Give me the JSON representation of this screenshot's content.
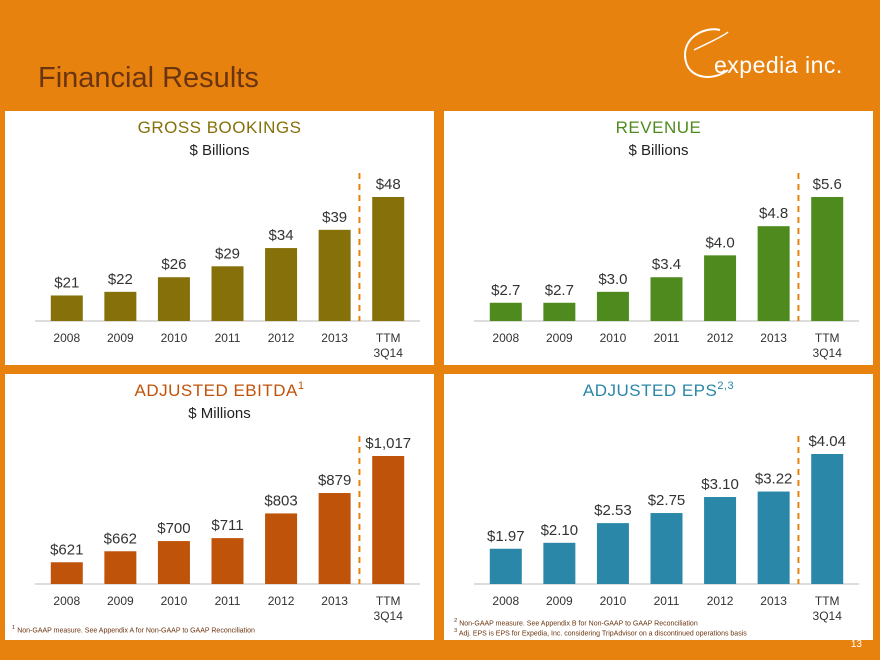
{
  "page": {
    "title": "Financial Results",
    "logo_text": "expedia inc.",
    "page_number": "13"
  },
  "footnotes": {
    "ebitda": "Non-GAAP measure. See Appendix A for Non-GAAP to GAAP Reconciliation",
    "ebitda_mark": "1",
    "eps_1": "Non-GAAP measure. See Appendix B for Non-GAAP to GAAP Reconciliation",
    "eps_1_mark": "2",
    "eps_2": "Adj. EPS is EPS for Expedia, Inc. considering TripAdvisor on a discontinued operations basis",
    "eps_2_mark": "3"
  },
  "chart_data": [
    {
      "id": "gross-bookings",
      "type": "bar",
      "title": "GROSS BOOKINGS",
      "title_sup": "",
      "subtitle": "$ Billions",
      "categories": [
        "2008",
        "2009",
        "2010",
        "2011",
        "2012",
        "2013",
        "TTM"
      ],
      "category_sublabels": [
        "",
        "",
        "",
        "",
        "",
        "",
        "3Q14"
      ],
      "values": [
        21,
        22,
        26,
        29,
        34,
        39,
        48
      ],
      "data_labels": [
        "$21",
        "$22",
        "$26",
        "$29",
        "$34",
        "$39",
        "$48"
      ],
      "ylim": [
        0,
        48
      ],
      "bar_color": "#85700A",
      "title_color": "#85700A",
      "dashed_separator_before_last": true
    },
    {
      "id": "revenue",
      "type": "bar",
      "title": "REVENUE",
      "title_sup": "",
      "subtitle": "$ Billions",
      "categories": [
        "2008",
        "2009",
        "2010",
        "2011",
        "2012",
        "2013",
        "TTM"
      ],
      "category_sublabels": [
        "",
        "",
        "",
        "",
        "",
        "",
        "3Q14"
      ],
      "values": [
        2.7,
        2.7,
        3.0,
        3.4,
        4.0,
        4.8,
        5.6
      ],
      "data_labels": [
        "$2.7",
        "$2.7",
        "$3.0",
        "$3.4",
        "$4.0",
        "$4.8",
        "$5.6"
      ],
      "ylim": [
        0,
        5.6
      ],
      "bar_color": "#4F8A1E",
      "title_color": "#4F8A1E",
      "dashed_separator_before_last": true
    },
    {
      "id": "adjusted-ebitda",
      "type": "bar",
      "title": "ADJUSTED EBITDA",
      "title_sup": "1",
      "subtitle": "$ Millions",
      "categories": [
        "2008",
        "2009",
        "2010",
        "2011",
        "2012",
        "2013",
        "TTM"
      ],
      "category_sublabels": [
        "",
        "",
        "",
        "",
        "",
        "",
        "3Q14"
      ],
      "values": [
        621,
        662,
        700,
        711,
        803,
        879,
        1017
      ],
      "data_labels": [
        "$621",
        "$662",
        "$700",
        "$711",
        "$803",
        "$879",
        "$1,017"
      ],
      "ylim": [
        0,
        1017
      ],
      "bar_color": "#C0530A",
      "title_color": "#C0530A",
      "dashed_separator_before_last": true
    },
    {
      "id": "adjusted-eps",
      "type": "bar",
      "title": "ADJUSTED EPS",
      "title_sup": "2,3",
      "subtitle": "",
      "categories": [
        "2008",
        "2009",
        "2010",
        "2011",
        "2012",
        "2013",
        "TTM"
      ],
      "category_sublabels": [
        "",
        "",
        "",
        "",
        "",
        "",
        "3Q14"
      ],
      "values": [
        1.97,
        2.1,
        2.53,
        2.75,
        3.1,
        3.22,
        4.04
      ],
      "data_labels": [
        "$1.97",
        "$2.10",
        "$2.53",
        "$2.75",
        "$3.10",
        "$3.22",
        "$4.04"
      ],
      "ylim": [
        0,
        4.04
      ],
      "bar_color": "#2A87A7",
      "title_color": "#2A87A7",
      "dashed_separator_before_last": true
    }
  ],
  "colors": {
    "background": "#E8820F",
    "title_text": "#6B3410",
    "axis_text": "#333333",
    "separator": "#E8820F"
  }
}
